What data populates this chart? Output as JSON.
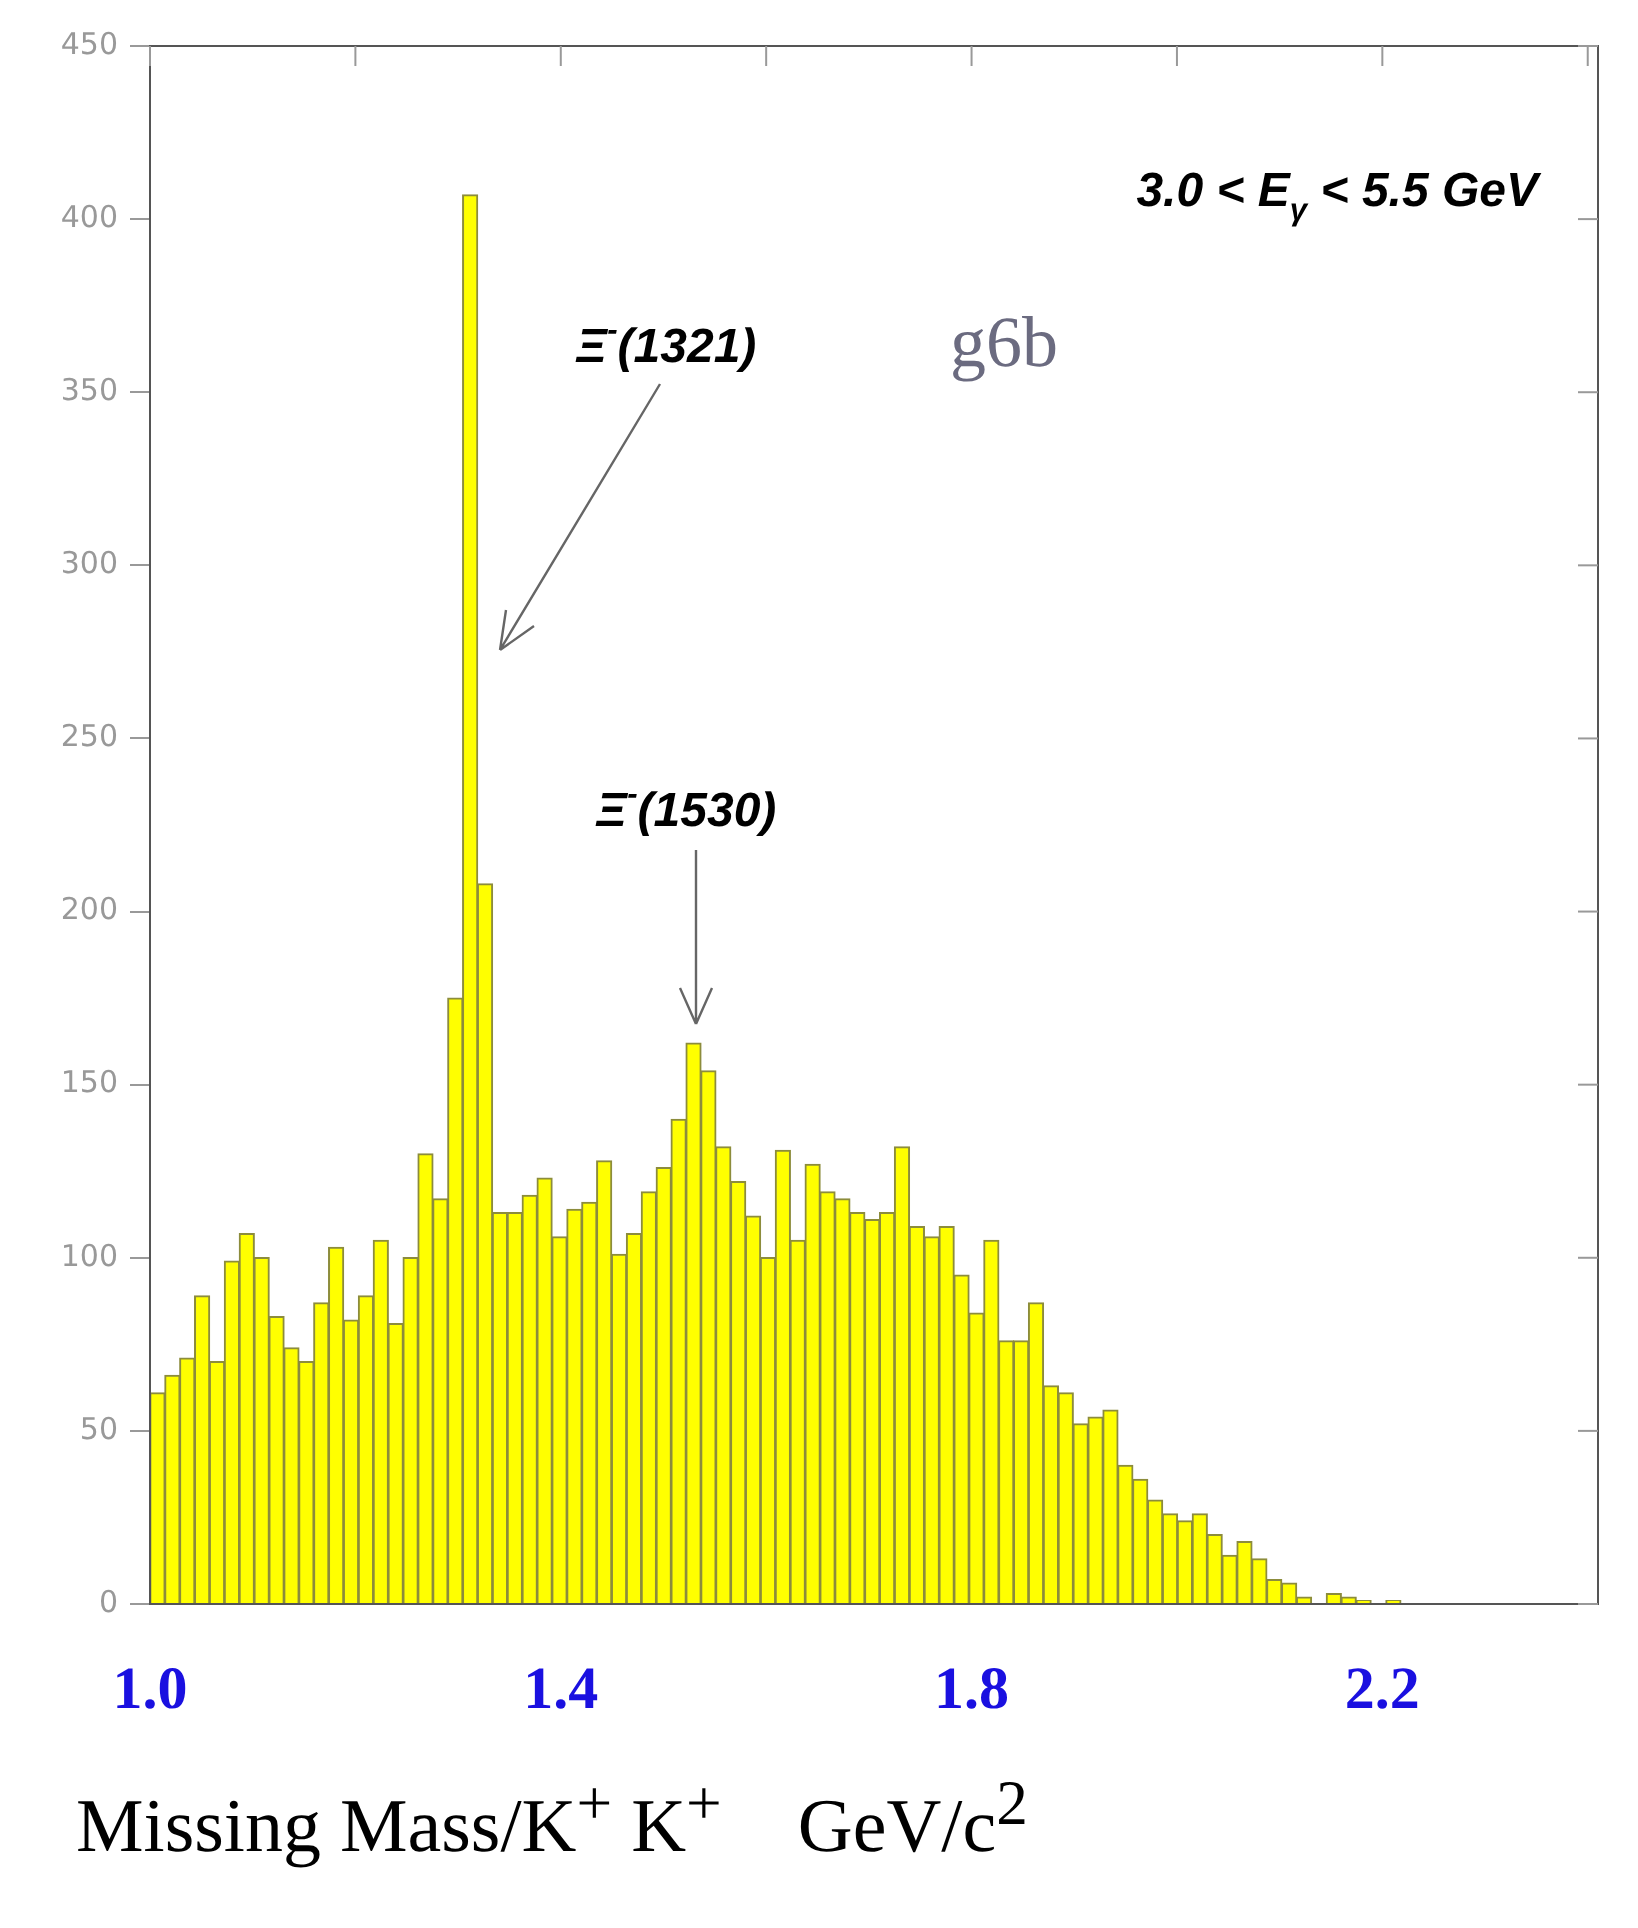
{
  "chart_data": {
    "type": "histogram",
    "xlabel": "Missing Mass/K$^{+}$ K$^{+}$    GeV/c$^{2}$",
    "bins": [
      1.0,
      1.0145,
      1.029,
      1.0435,
      1.058,
      1.0725,
      1.087,
      1.1015,
      1.116,
      1.1305,
      1.145,
      1.1595,
      1.174,
      1.1885,
      1.203,
      1.2175,
      1.232,
      1.2465,
      1.261,
      1.2755,
      1.29,
      1.3045,
      1.319,
      1.3335,
      1.348,
      1.3625,
      1.377,
      1.3915,
      1.406,
      1.4205,
      1.435,
      1.4495,
      1.464,
      1.4785,
      1.493,
      1.5075,
      1.522,
      1.5365,
      1.551,
      1.5655,
      1.58,
      1.5945,
      1.609,
      1.6235,
      1.638,
      1.6525,
      1.667,
      1.6815,
      1.696,
      1.7105,
      1.725,
      1.7395,
      1.754,
      1.7685,
      1.783,
      1.7975,
      1.812,
      1.8265,
      1.841,
      1.8555,
      1.87,
      1.8845,
      1.899,
      1.9135,
      1.928,
      1.9425,
      1.957,
      1.9715,
      1.986,
      2.0005,
      2.015,
      2.0295,
      2.044,
      2.0585,
      2.073,
      2.0875,
      2.102,
      2.1165,
      2.131,
      2.1455,
      2.16,
      2.1745,
      2.189,
      2.2035,
      2.218,
      2.2325,
      2.247,
      2.2615,
      2.276,
      2.2905,
      2.305,
      2.3195,
      2.334,
      2.3485,
      2.363,
      2.3775,
      2.392,
      2.4065
    ],
    "values": [
      61,
      66,
      71,
      89,
      70,
      99,
      107,
      100,
      83,
      74,
      70,
      87,
      103,
      82,
      89,
      105,
      81,
      100,
      130,
      117,
      175,
      407,
      208,
      113,
      113,
      118,
      123,
      106,
      114,
      116,
      128,
      101,
      107,
      119,
      126,
      140,
      162,
      154,
      132,
      122,
      112,
      100,
      131,
      105,
      127,
      119,
      117,
      113,
      111,
      113,
      132,
      109,
      106,
      109,
      95,
      84,
      105,
      76,
      76,
      87,
      63,
      61,
      52,
      54,
      56,
      40,
      36,
      30,
      26,
      24,
      26,
      20,
      14,
      18,
      13,
      7,
      6,
      2,
      0,
      3,
      2,
      1,
      0,
      1,
      0,
      0,
      0,
      0,
      0,
      0,
      0,
      0,
      0,
      0,
      0,
      0,
      0
    ],
    "color": "#ffff00",
    "xlim": [
      1.0,
      2.41
    ],
    "xticks": [
      {
        "value": 1.0,
        "label": "1.0"
      },
      {
        "value": 1.2,
        "label": null
      },
      {
        "value": 1.4,
        "label": "1.4"
      },
      {
        "value": 1.6,
        "label": null
      },
      {
        "value": 1.8,
        "label": "1.8"
      },
      {
        "value": 2.0,
        "label": null
      },
      {
        "value": 2.2,
        "label": "2.2"
      },
      {
        "value": 2.4,
        "label": null
      }
    ],
    "ylim": [
      0,
      450
    ],
    "yticks": [
      0,
      50,
      100,
      150,
      200,
      250,
      300,
      350,
      400,
      450
    ],
    "annotations": [
      "3.0 < E$_{γ}$ < 5.5 GeV",
      "g6b",
      "Ξ$^{-}$(1321)",
      "Ξ$^{-}$(1530)"
    ]
  }
}
